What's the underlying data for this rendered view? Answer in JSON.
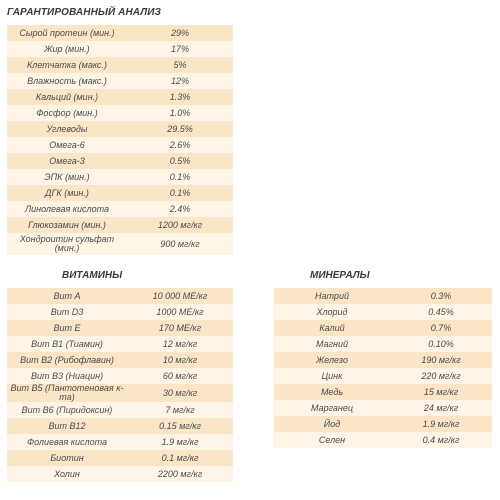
{
  "title": "ГАРАНТИРОВАННЫЙ АНАЛИЗ",
  "analysis": [
    {
      "name": "Сырой протеин (мин.)",
      "value": "29%"
    },
    {
      "name": "Жир (мин.)",
      "value": "17%"
    },
    {
      "name": "Клетчатка (макс.)",
      "value": "5%"
    },
    {
      "name": "Влажность (макс.)",
      "value": "12%"
    },
    {
      "name": "Кальций (мин.)",
      "value": "1.3%"
    },
    {
      "name": "Фосфор (мин.)",
      "value": "1.0%"
    },
    {
      "name": "Углеводы",
      "value": "29.5%"
    },
    {
      "name": "Омега-6",
      "value": "2.6%"
    },
    {
      "name": "Омега-3",
      "value": "0.5%"
    },
    {
      "name": "ЭПК (мин.)",
      "value": "0.1%"
    },
    {
      "name": "ДГК (мин.)",
      "value": "0.1%"
    },
    {
      "name": "Линолевая кислота",
      "value": "2.4%"
    },
    {
      "name": "Глюкозамин (мин.)",
      "value": "1200 мг/кг"
    },
    {
      "name": "Хондроитин сульфат (мин.)",
      "value": "900 мг/кг"
    }
  ],
  "vitamins_title": "ВИТАМИНЫ",
  "vitamins": [
    {
      "name": "Вит А",
      "value": "10 000 МЕ/кг"
    },
    {
      "name": "Вит D3",
      "value": "1000 МЕ/кг"
    },
    {
      "name": "Вит Е",
      "value": "170 МЕ/кг"
    },
    {
      "name": "Вит В1 (Тиамин)",
      "value": "12 мг/кг"
    },
    {
      "name": "Вит В2 (Рибофлавин)",
      "value": "10 мг/кг"
    },
    {
      "name": "Вит В3 (Ниацин)",
      "value": "60 мг/кг"
    },
    {
      "name": "Вит В5 (Пантотеновая к-та)",
      "value": "30 мг/кг"
    },
    {
      "name": "Вит В6 (Пиридоксин)",
      "value": "7 мг/кг"
    },
    {
      "name": "Вит В12",
      "value": "0.15 мг/кг"
    },
    {
      "name": "Фолиевая кислота",
      "value": "1.9 мг/кг"
    },
    {
      "name": "Биотин",
      "value": "0.1 мг/кг"
    },
    {
      "name": "Холин",
      "value": "2200 мг/кг"
    }
  ],
  "minerals_title": "МИНЕРАЛЫ",
  "minerals": [
    {
      "name": "Натрий",
      "value": "0.3%"
    },
    {
      "name": "Хлорид",
      "value": "0.45%"
    },
    {
      "name": "Калий",
      "value": "0.7%"
    },
    {
      "name": "Магний",
      "value": "0.10%"
    },
    {
      "name": "Железо",
      "value": "190 мг/кг"
    },
    {
      "name": "Цинк",
      "value": "220 мг/кг"
    },
    {
      "name": "Медь",
      "value": "15 мг/кг"
    },
    {
      "name": "Марганец",
      "value": "24 мг/кг"
    },
    {
      "name": "Йод",
      "value": "1.9 мг/кг"
    },
    {
      "name": "Селен",
      "value": "0.4 мг/кг"
    }
  ]
}
